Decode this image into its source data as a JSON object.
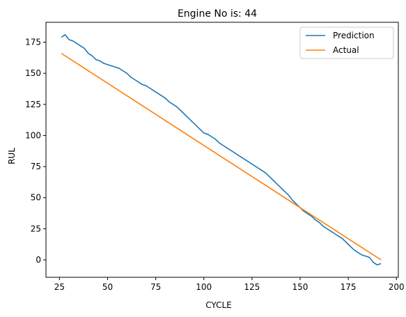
{
  "chart_data": {
    "type": "line",
    "title": "Engine No is: 44",
    "xlabel": "CYCLE",
    "ylabel": "RUL",
    "xlim": [
      18,
      201
    ],
    "ylim": [
      -14,
      191
    ],
    "xticks": [
      25,
      50,
      75,
      100,
      125,
      150,
      175,
      200
    ],
    "yticks": [
      0,
      25,
      50,
      75,
      100,
      125,
      150,
      175
    ],
    "grid": false,
    "legend_position": "top-right",
    "series": [
      {
        "name": "Prediction",
        "color": "#1f77b4",
        "x": [
          26,
          28,
          30,
          32,
          34,
          36,
          38,
          40,
          42,
          44,
          46,
          48,
          50,
          52,
          54,
          56,
          58,
          60,
          62,
          64,
          66,
          68,
          70,
          72,
          74,
          76,
          78,
          80,
          82,
          84,
          86,
          88,
          90,
          92,
          94,
          96,
          98,
          100,
          102,
          104,
          106,
          108,
          110,
          112,
          114,
          116,
          118,
          120,
          122,
          124,
          126,
          128,
          130,
          132,
          134,
          136,
          138,
          140,
          142,
          144,
          146,
          148,
          150,
          152,
          154,
          156,
          158,
          160,
          162,
          164,
          166,
          168,
          170,
          172,
          174,
          176,
          178,
          180,
          182,
          184,
          186,
          188,
          190,
          192
        ],
        "y": [
          179,
          181,
          177,
          176,
          174,
          172,
          170,
          166,
          164,
          161,
          160,
          158,
          157,
          156,
          155,
          154,
          152,
          150,
          147,
          145,
          143,
          141,
          140,
          138,
          136,
          134,
          132,
          130,
          127,
          125,
          123,
          120,
          117,
          114,
          111,
          108,
          105,
          102,
          101,
          99,
          97,
          94,
          92,
          90,
          88,
          86,
          84,
          82,
          80,
          78,
          76,
          74,
          72,
          70,
          67,
          64,
          61,
          58,
          55,
          52,
          48,
          45,
          42,
          39,
          37,
          35,
          32,
          30,
          27,
          25,
          23,
          21,
          19,
          17,
          14,
          11,
          8,
          6,
          4,
          3,
          2,
          -2,
          -4,
          -3
        ]
      },
      {
        "name": "Actual",
        "color": "#ff7f0e",
        "x": [
          26,
          192
        ],
        "y": [
          166,
          0
        ]
      }
    ]
  }
}
